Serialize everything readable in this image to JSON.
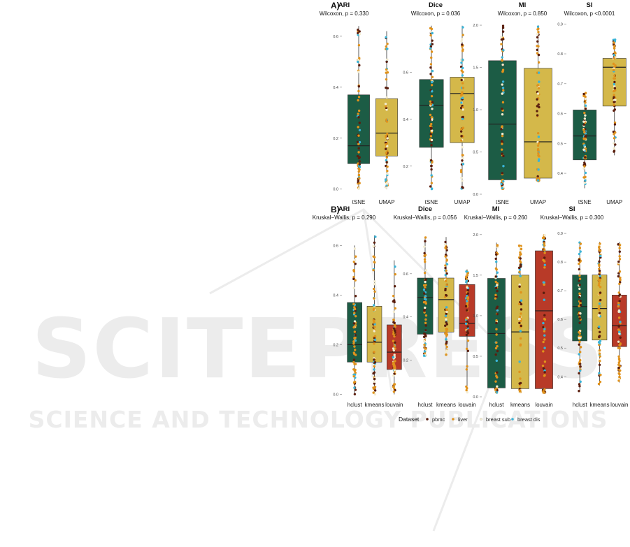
{
  "colors": {
    "hclust_or_tsne": "#1c5c45",
    "kmeans_or_umap": "#d4b84a",
    "louvain": "#b83a28",
    "pbmc": "#5a1e0e",
    "liver": "#e0921c",
    "breast_sub": "#f3ecd0",
    "breast_dis": "#3ab4d8",
    "watermark": "#ececec"
  },
  "watermark": {
    "main": "SCITEPRESS",
    "sub": "SCIENCE AND TECHNOLOGY PUBLICATIONS"
  },
  "legend": {
    "title": "Dataset",
    "items": [
      {
        "label": "pbmc",
        "color_key": "pbmc"
      },
      {
        "label": "liver",
        "color_key": "liver"
      },
      {
        "label": "breast sub",
        "color_key": "breast_sub"
      },
      {
        "label": "breast dis",
        "color_key": "breast_dis"
      }
    ]
  },
  "chart_data": [
    {
      "panel": "A)",
      "type": "box",
      "title": "ARI",
      "subtitle": "Wilcoxon, p = 0.330",
      "ylim": [
        -0.02,
        0.66
      ],
      "yticks": [
        0.0,
        0.2,
        0.4,
        0.6
      ],
      "categories": [
        "tSNE",
        "UMAP"
      ],
      "boxes": [
        {
          "q1": 0.1,
          "median": 0.17,
          "q3": 0.37,
          "min": 0.0,
          "max": 0.64,
          "color_key": "hclust_or_tsne"
        },
        {
          "q1": 0.13,
          "median": 0.22,
          "q3": 0.355,
          "min": 0.0,
          "max": 0.62,
          "color_key": "kmeans_or_umap"
        }
      ]
    },
    {
      "panel": "",
      "type": "box",
      "title": "Dice",
      "subtitle": "Wilcoxon, p = 0.036",
      "ylim": [
        0.08,
        0.82
      ],
      "yticks": [
        0.2,
        0.4,
        0.6
      ],
      "categories": [
        "tSNE",
        "UMAP"
      ],
      "boxes": [
        {
          "q1": 0.28,
          "median": 0.46,
          "q3": 0.57,
          "min": 0.1,
          "max": 0.8,
          "color_key": "hclust_or_tsne"
        },
        {
          "q1": 0.3,
          "median": 0.51,
          "q3": 0.58,
          "min": 0.1,
          "max": 0.8,
          "color_key": "kmeans_or_umap"
        }
      ]
    },
    {
      "panel": "",
      "type": "box",
      "title": "MI",
      "subtitle": "Wilcoxon, p = 0.850",
      "ylim": [
        0.0,
        2.05
      ],
      "yticks": [
        0.0,
        0.5,
        1.0,
        1.5,
        2.0
      ],
      "categories": [
        "tSNE",
        "UMAP"
      ],
      "boxes": [
        {
          "q1": 0.17,
          "median": 0.83,
          "q3": 1.58,
          "min": 0.05,
          "max": 2.0,
          "color_key": "hclust_or_tsne"
        },
        {
          "q1": 0.19,
          "median": 0.62,
          "q3": 1.49,
          "min": 0.15,
          "max": 2.0,
          "color_key": "kmeans_or_umap"
        }
      ]
    },
    {
      "panel": "",
      "type": "box",
      "title": "SI",
      "subtitle": "Wilcoxon, p <0.0001",
      "ylim": [
        0.33,
        0.91
      ],
      "yticks": [
        0.4,
        0.5,
        0.6,
        0.7,
        0.8,
        0.9
      ],
      "categories": [
        "tSNE",
        "UMAP"
      ],
      "boxes": [
        {
          "q1": 0.445,
          "median": 0.525,
          "q3": 0.612,
          "min": 0.35,
          "max": 0.67,
          "color_key": "hclust_or_tsne"
        },
        {
          "q1": 0.625,
          "median": 0.755,
          "q3": 0.785,
          "min": 0.46,
          "max": 0.85,
          "color_key": "kmeans_or_umap"
        }
      ]
    },
    {
      "panel": "B)",
      "type": "box",
      "title": "ARI",
      "subtitle": "Kruskal−Wallis, p = 0.290",
      "ylim": [
        -0.01,
        0.66
      ],
      "yticks": [
        0.0,
        0.2,
        0.4,
        0.6
      ],
      "categories": [
        "hclust",
        "kmeans",
        "louvain"
      ],
      "boxes": [
        {
          "q1": 0.13,
          "median": 0.2,
          "q3": 0.37,
          "min": 0.0,
          "max": 0.6,
          "color_key": "hclust_or_tsne"
        },
        {
          "q1": 0.13,
          "median": 0.21,
          "q3": 0.355,
          "min": 0.0,
          "max": 0.64,
          "color_key": "kmeans_or_umap"
        },
        {
          "q1": 0.1,
          "median": 0.17,
          "q3": 0.28,
          "min": 0.0,
          "max": 0.54,
          "color_key": "louvain"
        }
      ]
    },
    {
      "panel": "",
      "type": "box",
      "title": "Dice",
      "subtitle": "Kruskal−Wallis, p = 0.056",
      "ylim": [
        0.03,
        0.8
      ],
      "yticks": [
        0.2,
        0.4,
        0.6
      ],
      "categories": [
        "hclust",
        "kmeans",
        "louvain"
      ],
      "boxes": [
        {
          "q1": 0.32,
          "median": 0.49,
          "q3": 0.58,
          "min": 0.22,
          "max": 0.77,
          "color_key": "hclust_or_tsne"
        },
        {
          "q1": 0.33,
          "median": 0.48,
          "q3": 0.58,
          "min": 0.22,
          "max": 0.77,
          "color_key": "kmeans_or_umap"
        },
        {
          "q1": 0.31,
          "median": 0.37,
          "q3": 0.55,
          "min": 0.05,
          "max": 0.62,
          "color_key": "louvain"
        }
      ]
    },
    {
      "panel": "",
      "type": "box",
      "title": "MI",
      "subtitle": "Kruskal−Wallis, p = 0.260",
      "ylim": [
        0.0,
        2.05
      ],
      "yticks": [
        0.0,
        0.5,
        1.0,
        1.5,
        2.0
      ],
      "categories": [
        "hclust",
        "kmeans",
        "louvain"
      ],
      "boxes": [
        {
          "q1": 0.11,
          "median": 0.78,
          "q3": 1.46,
          "min": 0.05,
          "max": 1.9,
          "color_key": "hclust_or_tsne"
        },
        {
          "q1": 0.1,
          "median": 0.8,
          "q3": 1.5,
          "min": 0.05,
          "max": 1.87,
          "color_key": "kmeans_or_umap"
        },
        {
          "q1": 0.1,
          "median": 1.06,
          "q3": 1.8,
          "min": 0.05,
          "max": 2.0,
          "color_key": "louvain"
        }
      ]
    },
    {
      "panel": "",
      "type": "box",
      "title": "SI",
      "subtitle": "Kruskal−Wallis, p = 0.300",
      "ylim": [
        0.33,
        0.91
      ],
      "yticks": [
        0.4,
        0.5,
        0.6,
        0.7,
        0.8,
        0.9
      ],
      "categories": [
        "hclust",
        "kmeans",
        "louvain"
      ],
      "boxes": [
        {
          "q1": 0.525,
          "median": 0.645,
          "q3": 0.755,
          "min": 0.35,
          "max": 0.87,
          "color_key": "hclust_or_tsne"
        },
        {
          "q1": 0.528,
          "median": 0.638,
          "q3": 0.755,
          "min": 0.37,
          "max": 0.87,
          "color_key": "kmeans_or_umap"
        },
        {
          "q1": 0.505,
          "median": 0.578,
          "q3": 0.685,
          "min": 0.38,
          "max": 0.87,
          "color_key": "louvain"
        }
      ]
    }
  ]
}
